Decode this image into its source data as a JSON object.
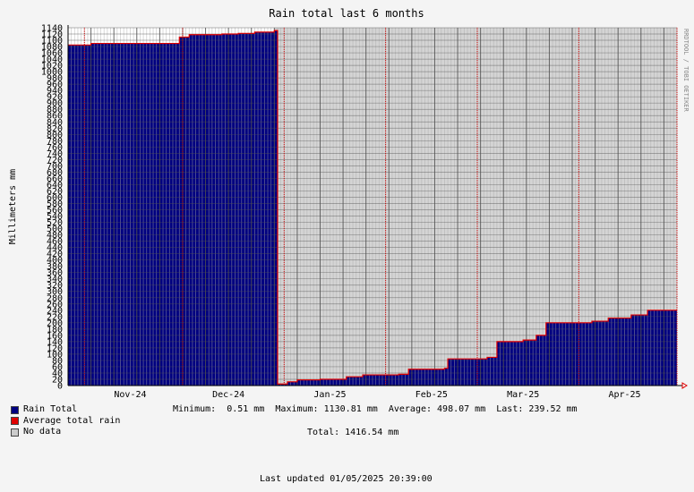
{
  "chart_data": {
    "type": "area",
    "title": "Rain total last 6 months",
    "ylabel": "Millimeters   mm",
    "ylim": [
      0,
      1140
    ],
    "yticks": [
      0,
      20,
      40,
      60,
      80,
      100,
      120,
      140,
      160,
      180,
      200,
      220,
      240,
      260,
      280,
      300,
      320,
      340,
      360,
      380,
      400,
      420,
      440,
      460,
      480,
      500,
      520,
      540,
      560,
      580,
      600,
      620,
      640,
      660,
      680,
      700,
      720,
      740,
      760,
      780,
      800,
      820,
      840,
      860,
      880,
      900,
      920,
      940,
      960,
      980,
      1000,
      1020,
      1040,
      1060,
      1080,
      1100,
      1120,
      1140
    ],
    "xlim": [
      "2024-10-27",
      "2025-05-01"
    ],
    "x_tick_labels": [
      {
        "label": "Nov-24",
        "date": "2024-11-15"
      },
      {
        "label": "Dec-24",
        "date": "2024-12-15"
      },
      {
        "label": "Jan-25",
        "date": "2025-01-15"
      },
      {
        "label": "Feb-25",
        "date": "2025-02-15"
      },
      {
        "label": "Mar-25",
        "date": "2025-03-15"
      },
      {
        "label": "Apr-25",
        "date": "2025-04-15"
      }
    ],
    "month_boundaries": [
      "2024-11-01",
      "2024-12-01",
      "2025-01-01",
      "2025-02-01",
      "2025-03-01",
      "2025-04-01",
      "2025-05-01"
    ],
    "no_data_start": "2024-12-29",
    "series": [
      {
        "name": "Rain Total",
        "color": "#000080",
        "points": [
          {
            "x": "2024-10-27",
            "y": 1085
          },
          {
            "x": "2024-11-03",
            "y": 1090
          },
          {
            "x": "2024-11-28",
            "y": 1090
          },
          {
            "x": "2024-11-30",
            "y": 1110
          },
          {
            "x": "2024-12-03",
            "y": 1118
          },
          {
            "x": "2024-12-13",
            "y": 1120
          },
          {
            "x": "2024-12-18",
            "y": 1122
          },
          {
            "x": "2024-12-23",
            "y": 1126
          },
          {
            "x": "2024-12-29",
            "y": 1131
          },
          {
            "x": "2024-12-30",
            "y": 5
          },
          {
            "x": "2025-01-02",
            "y": 12
          },
          {
            "x": "2025-01-05",
            "y": 18
          },
          {
            "x": "2025-01-12",
            "y": 20
          },
          {
            "x": "2025-01-20",
            "y": 28
          },
          {
            "x": "2025-01-25",
            "y": 34
          },
          {
            "x": "2025-02-05",
            "y": 36
          },
          {
            "x": "2025-02-08",
            "y": 52
          },
          {
            "x": "2025-02-19",
            "y": 55
          },
          {
            "x": "2025-02-20",
            "y": 85
          },
          {
            "x": "2025-03-04",
            "y": 90
          },
          {
            "x": "2025-03-07",
            "y": 140
          },
          {
            "x": "2025-03-15",
            "y": 145
          },
          {
            "x": "2025-03-19",
            "y": 160
          },
          {
            "x": "2025-03-22",
            "y": 200
          },
          {
            "x": "2025-04-05",
            "y": 205
          },
          {
            "x": "2025-04-10",
            "y": 215
          },
          {
            "x": "2025-04-17",
            "y": 225
          },
          {
            "x": "2025-04-22",
            "y": 240
          },
          {
            "x": "2025-05-01",
            "y": 240
          }
        ]
      },
      {
        "name": "Average total rain",
        "color": "#e00000"
      },
      {
        "name": "No data",
        "color": "#cccccc"
      }
    ],
    "stats": {
      "minimum": "Minimum:  0.51 mm",
      "maximum": "Maximum: 1130.81 mm",
      "average": "Average: 498.07 mm",
      "last": "Last: 239.52 mm",
      "total": "Total: 1416.54 mm"
    }
  },
  "footer": "Last updated 01/05/2025 20:39:00",
  "watermark": "RRDTOOL / TOBI OETIKER"
}
